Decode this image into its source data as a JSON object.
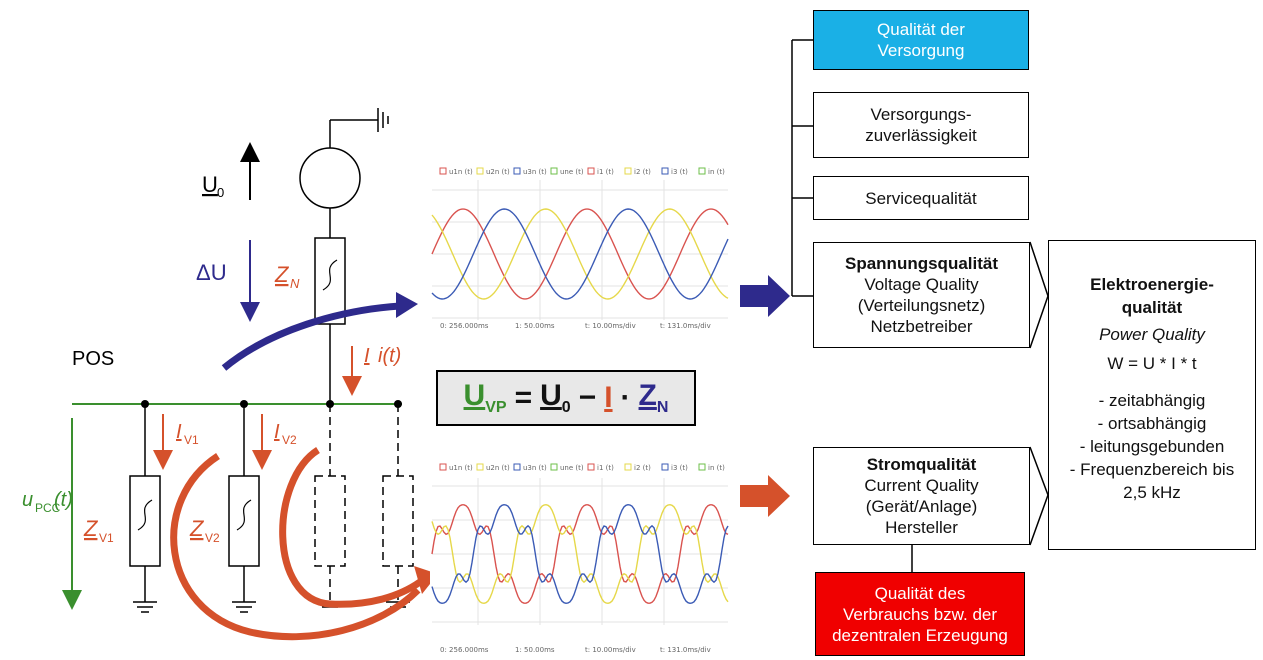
{
  "circuit": {
    "pos_label": "POS",
    "u0": "U",
    "u0_sub": "0",
    "delta_u": "ΔU",
    "zn": "Z",
    "zn_sub": "N",
    "i_label": "I",
    "it_label": "i(t)",
    "iv1": "I",
    "iv1_sub": "V1",
    "iv2": "I",
    "iv2_sub": "V2",
    "upcc": "u",
    "upcc_sub": "PCC",
    "upcc_tail": "(t)",
    "zv1": "Z",
    "zv1_sub": "V1",
    "zv2": "Z",
    "zv2_sub": "V2"
  },
  "formula": {
    "u": "U",
    "u_sub": "VP",
    "eq": "=",
    "u0": "U",
    "u0_sub": "0",
    "minus": "−",
    "i": "I",
    "dot": "·",
    "z": "Z",
    "z_sub": "N"
  },
  "waveform_top": {
    "legend": [
      "u1n (t)",
      "u2n (t)",
      "u3n (t)",
      "une (t)",
      "i1 (t)",
      "i2 (t)",
      "i3 (t)",
      "in (t)"
    ],
    "axis": [
      "0: 256.000ms",
      "1: 50.00ms",
      "t: 10.00ms/div",
      "t: 131.0ms/div"
    ]
  },
  "waveform_bottom": {
    "legend": [
      "u1n (t)",
      "u2n (t)",
      "u3n (t)",
      "une (t)",
      "i1 (t)",
      "i2 (t)",
      "i3 (t)",
      "in (t)"
    ],
    "axis": [
      "0: 256.000ms",
      "1: 50.00ms",
      "t: 10.00ms/div",
      "t: 131.0ms/div"
    ]
  },
  "boxes": {
    "qualitaet_versorgung": [
      "Qualität der",
      "Versorgung"
    ],
    "versorgungs": [
      "Versorgungs-",
      "zuverlässigkeit"
    ],
    "service": "Servicequalität",
    "spannung_title": "Spannungsqualität",
    "spannung_lines": [
      "Voltage Quality",
      "(Verteilungsnetz)",
      "Netzbetreiber"
    ],
    "strom_title": "Stromqualität",
    "strom_lines": [
      "Current Quality",
      "(Gerät/Anlage)",
      "Hersteller"
    ],
    "verbrauch": [
      "Qualität des",
      "Verbrauchs bzw. der",
      "dezentralen Erzeugung"
    ],
    "elektro_title": [
      "Elektroenergie-",
      "qualität"
    ],
    "elektro_sub": "Power Quality",
    "elektro_formula": "W = U * I * t",
    "elektro_list": [
      "- zeitabhängig",
      "- ortsabhängig",
      "- leitungsgebunden",
      "- Frequenzbereich bis",
      "2,5 kHz"
    ]
  },
  "colors": {
    "green": "#3a8f2e",
    "purple": "#2e2a8c",
    "orange": "#d5512b",
    "blue_box": "#1ab0e6",
    "red_box": "#f00000"
  }
}
